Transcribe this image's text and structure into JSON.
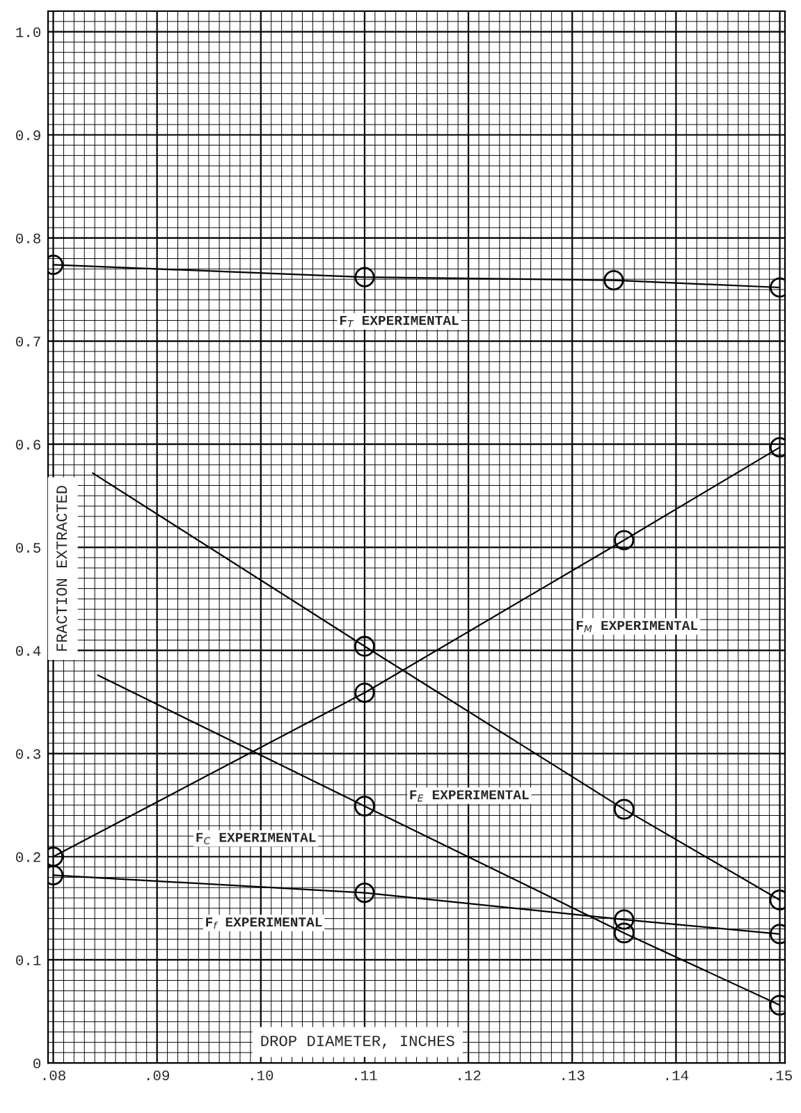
{
  "chart_data": {
    "type": "line",
    "xlabel": "DROP DIAMETER, INCHES",
    "ylabel": "FRACTION EXTRACTED",
    "xlim": [
      0.0795,
      0.1505
    ],
    "ylim": [
      0,
      1.02
    ],
    "xticks": [
      {
        "value": 0.08,
        "label": ".08"
      },
      {
        "value": 0.09,
        "label": ".09"
      },
      {
        "value": 0.1,
        "label": ".10"
      },
      {
        "value": 0.11,
        "label": ".11"
      },
      {
        "value": 0.12,
        "label": ".12"
      },
      {
        "value": 0.13,
        "label": ".13"
      },
      {
        "value": 0.14,
        "label": ".14"
      },
      {
        "value": 0.15,
        "label": ".15"
      }
    ],
    "yticks": [
      0,
      0.1,
      0.2,
      0.3,
      0.4,
      0.5,
      0.6,
      0.7,
      0.8,
      0.9,
      {
        "value": 1.0,
        "label": "1.0"
      }
    ],
    "grid": true,
    "line_style": "solid",
    "series": [
      {
        "color": "#000000",
        "marker": "circle",
        "x": [
          0.08,
          0.11,
          0.134,
          0.15
        ],
        "values": [
          0.774,
          0.762,
          0.759,
          0.752
        ]
      },
      {
        "color": "#000000",
        "marker": "none",
        "x": [
          0.0838,
          0.11,
          0.135,
          0.15
        ],
        "values": [
          0.572,
          0.404,
          0.246,
          0.158
        ]
      },
      {
        "type": "scatter",
        "color": "#000000",
        "marker": "circle",
        "x": [
          0.11,
          0.135,
          0.15
        ],
        "values": [
          0.404,
          0.246,
          0.158
        ]
      },
      {
        "color": "#000000",
        "marker": "none",
        "x": [
          0.0843,
          0.11,
          0.135,
          0.15
        ],
        "values": [
          0.376,
          0.249,
          0.126,
          0.056
        ]
      },
      {
        "type": "scatter",
        "color": "#000000",
        "marker": "circle",
        "x": [
          0.11,
          0.135,
          0.15
        ],
        "values": [
          0.249,
          0.126,
          0.056
        ]
      },
      {
        "color": "#000000",
        "marker": "circle",
        "x": [
          0.08,
          0.11,
          0.135,
          0.15
        ],
        "values": [
          0.2,
          0.359,
          0.507,
          0.597
        ]
      },
      {
        "color": "#000000",
        "marker": "circle",
        "x": [
          0.08,
          0.11,
          0.135,
          0.15
        ],
        "values": [
          0.182,
          0.165,
          0.139,
          0.125
        ]
      }
    ],
    "annotations": [
      "F$_{T}$ EXPERIMENTAL",
      "F$_{M}$ EXPERIMENTAL",
      "F$_{E}$ EXPERIMENTAL",
      "F$_{C}$ EXPERIMENTAL",
      "F$_{f}$ EXPERIMENTAL"
    ]
  }
}
